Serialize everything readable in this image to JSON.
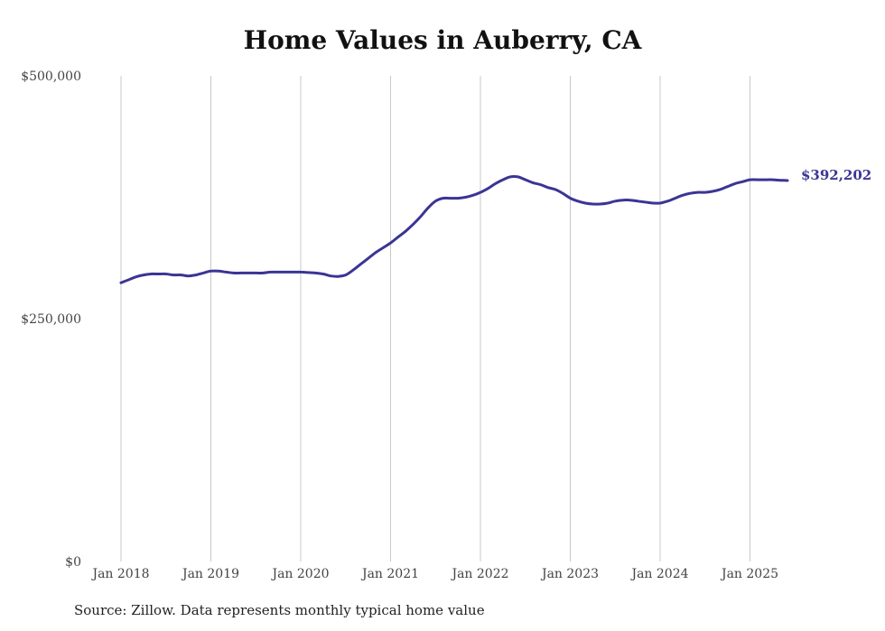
{
  "title": "Home Values in Auberry, CA",
  "source": "Source: Zillow. Data represents monthly typical home value",
  "colors": {
    "line": "#3a3594",
    "grid": "#c8c8c8",
    "end_label": "#3a3594"
  },
  "chart_data": {
    "type": "line",
    "title": "Home Values in Auberry, CA",
    "xlabel": "",
    "ylabel": "",
    "ylim": [
      0,
      500000
    ],
    "y_ticks": [
      0,
      250000,
      500000
    ],
    "y_tick_labels": [
      "$0",
      "$250,000",
      "$500,000"
    ],
    "x_ticks": [
      "2018-01",
      "2019-01",
      "2020-01",
      "2021-01",
      "2022-01",
      "2023-01",
      "2024-01",
      "2025-01"
    ],
    "x_tick_labels": [
      "Jan 2018",
      "Jan 2019",
      "Jan 2020",
      "Jan 2021",
      "Jan 2022",
      "Jan 2023",
      "Jan 2024",
      "Jan 2025"
    ],
    "grid": "vertical",
    "end_label": "$392,202",
    "series": [
      {
        "x": [
          "2018-01",
          "2018-02",
          "2018-03",
          "2018-04",
          "2018-05",
          "2018-06",
          "2018-07",
          "2018-08",
          "2018-09",
          "2018-10",
          "2018-11",
          "2018-12",
          "2019-01",
          "2019-02",
          "2019-03",
          "2019-04",
          "2019-05",
          "2019-06",
          "2019-07",
          "2019-08",
          "2019-09",
          "2019-10",
          "2019-11",
          "2019-12",
          "2020-01",
          "2020-02",
          "2020-03",
          "2020-04",
          "2020-05",
          "2020-06",
          "2020-07",
          "2020-08",
          "2020-09",
          "2020-10",
          "2020-11",
          "2020-12",
          "2021-01",
          "2021-02",
          "2021-03",
          "2021-04",
          "2021-05",
          "2021-06",
          "2021-07",
          "2021-08",
          "2021-09",
          "2021-10",
          "2021-11",
          "2021-12",
          "2022-01",
          "2022-02",
          "2022-03",
          "2022-04",
          "2022-05",
          "2022-06",
          "2022-07",
          "2022-08",
          "2022-09",
          "2022-10",
          "2022-11",
          "2022-12",
          "2023-01",
          "2023-02",
          "2023-03",
          "2023-04",
          "2023-05",
          "2023-06",
          "2023-07",
          "2023-08",
          "2023-09",
          "2023-10",
          "2023-11",
          "2023-12",
          "2024-01",
          "2024-02",
          "2024-03",
          "2024-04",
          "2024-05",
          "2024-06",
          "2024-07",
          "2024-08",
          "2024-09",
          "2024-10",
          "2024-11",
          "2024-12",
          "2025-01",
          "2025-02",
          "2025-03",
          "2025-04",
          "2025-05",
          "2025-06"
        ],
        "values": [
          287000,
          290000,
          293000,
          295000,
          296000,
          296000,
          296000,
          295000,
          295000,
          294000,
          295000,
          297000,
          299000,
          299000,
          298000,
          297000,
          297000,
          297000,
          297000,
          297000,
          298000,
          298000,
          298000,
          298000,
          298000,
          297500,
          297000,
          296000,
          294000,
          293500,
          295000,
          300000,
          306000,
          312000,
          318000,
          323000,
          328000,
          334000,
          340000,
          347000,
          355000,
          364000,
          371000,
          374000,
          374000,
          374000,
          375000,
          377000,
          380000,
          384000,
          389000,
          393000,
          396000,
          396000,
          393000,
          390000,
          388000,
          385000,
          383000,
          379000,
          374000,
          371000,
          369000,
          368000,
          368000,
          369000,
          371000,
          372000,
          372000,
          371000,
          370000,
          369000,
          369000,
          371000,
          374000,
          377000,
          379000,
          380000,
          380000,
          381000,
          383000,
          386000,
          389000,
          391000,
          393000,
          393000,
          393000,
          393000,
          392500,
          392202
        ]
      }
    ]
  }
}
